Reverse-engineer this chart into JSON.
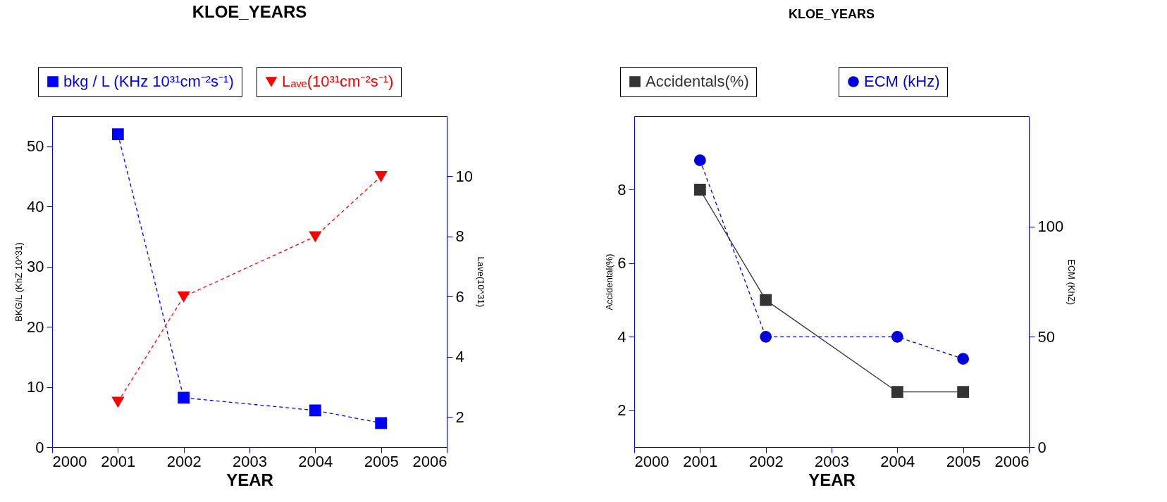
{
  "chart_data": [
    {
      "type": "line",
      "title": "KLOE_YEARS",
      "xlabel": "YEAR",
      "ylabel": "BKG/L (KhZ 10^31)",
      "y2label": "Lave(10^31)",
      "x": [
        2001,
        2002,
        2004,
        2005
      ],
      "xlim": [
        2000,
        2006
      ],
      "xticks": [
        2000,
        2001,
        2002,
        2003,
        2004,
        2005,
        2006
      ],
      "ylim": [
        0,
        55
      ],
      "yticks": [
        0,
        10,
        20,
        30,
        40,
        50
      ],
      "y2lim": [
        1,
        12
      ],
      "y2ticks": [
        2,
        4,
        6,
        8,
        10
      ],
      "grid": false,
      "legend": "top",
      "series": [
        {
          "name": "bkg / L (KHz 10³¹cm⁻²s⁻¹)",
          "color": "#0000ff",
          "marker": "square",
          "line_style": "dashed",
          "values": [
            52,
            8.2,
            6.1,
            4.0
          ]
        },
        {
          "name": "Lₐᵥₑ(10³¹cm⁻²s⁻¹)",
          "color": "#ff0000",
          "marker": "triangle-down",
          "line_style": "dashed",
          "axis": "y2",
          "values": [
            2.5,
            6.0,
            8.0,
            10
          ]
        }
      ]
    },
    {
      "type": "line",
      "title": "KLOE_YEARS",
      "xlabel": "YEAR",
      "ylabel": "Accidental(%)",
      "y2label": "ECM (KhZ)",
      "x": [
        2001,
        2002,
        2004,
        2005
      ],
      "xlim": [
        2000,
        2006
      ],
      "xticks": [
        2000,
        2001,
        2002,
        2003,
        2004,
        2005,
        2006
      ],
      "ylim": [
        1,
        10
      ],
      "yticks": [
        2,
        4,
        6,
        8
      ],
      "y2lim": [
        0,
        150
      ],
      "y2ticks": [
        0,
        50,
        100
      ],
      "grid": false,
      "legend": "top",
      "series": [
        {
          "name": "Accidentals(%)",
          "color": "#333333",
          "marker": "square",
          "line_style": "solid",
          "values": [
            8,
            5,
            2.5,
            2.5
          ]
        },
        {
          "name": "ECM (kHz)",
          "color": "#0000dd",
          "marker": "circle",
          "line_style": "dashed",
          "axis": "y2",
          "values": [
            130,
            50,
            50,
            40
          ]
        }
      ]
    }
  ]
}
